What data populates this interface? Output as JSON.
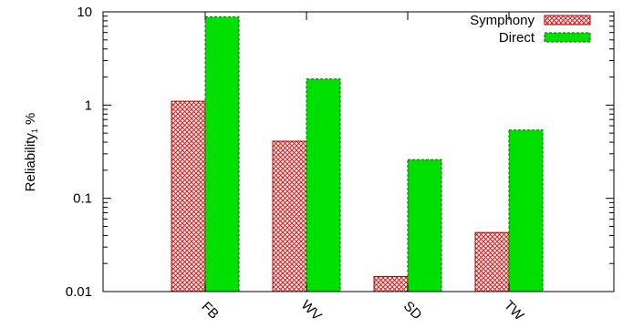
{
  "chart_data": {
    "type": "bar",
    "title": "",
    "xlabel": "",
    "ylabel": "Reliability",
    "ylabel_sub": "1",
    "ylabel_unit": " %",
    "yscale": "log",
    "ylim": [
      0.01,
      10
    ],
    "yticks": [
      "0.01",
      "0.1",
      "1",
      "10"
    ],
    "categories": [
      "FB",
      "WV",
      "SD",
      "TW"
    ],
    "series": [
      {
        "name": "Symphony",
        "values": [
          1.1,
          0.41,
          0.0145,
          0.043
        ],
        "color": "#cc0000",
        "pattern": "crosshatch"
      },
      {
        "name": "Direct",
        "values": [
          8.8,
          1.9,
          0.26,
          0.54
        ],
        "color": "#00e000",
        "pattern": "solid"
      }
    ],
    "legend_position": "top-right",
    "grid": false
  }
}
